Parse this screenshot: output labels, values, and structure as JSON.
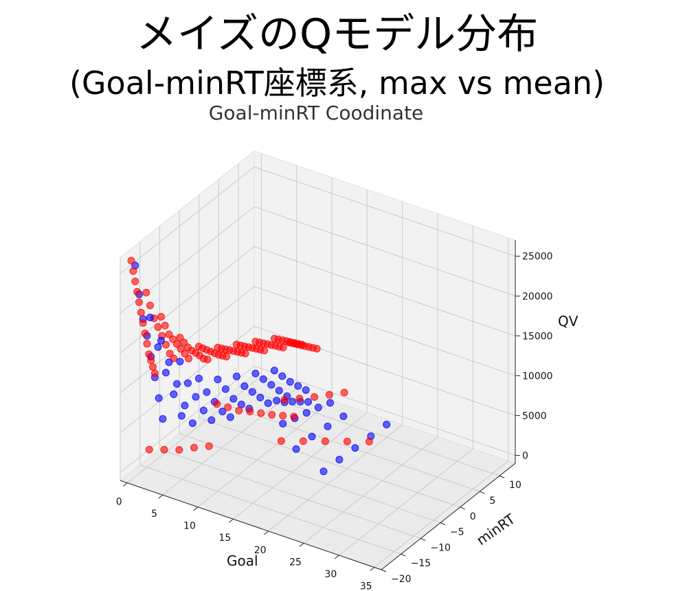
{
  "slide": {
    "title_line1": "メイズのQモデル分布",
    "title_line2": "(Goal-minRT座標系, max vs mean)"
  },
  "chart_data": {
    "type": "scatter",
    "title": "Goal-minRT Coodinate",
    "xlabel": "Goal",
    "ylabel": "minRT",
    "zlabel": "QV",
    "xlim": [
      -1,
      36
    ],
    "ylim": [
      -20,
      14
    ],
    "zlim": [
      -1000,
      27000
    ],
    "xticks": [
      "0",
      "5",
      "10",
      "15",
      "20",
      "25",
      "30",
      "35"
    ],
    "yticks": [
      "−20",
      "−15",
      "−10",
      "−5",
      "0",
      "5",
      "10"
    ],
    "zticks": [
      "0",
      "5000",
      "10000",
      "15000",
      "20000",
      "25000"
    ],
    "grid": true,
    "colors": {
      "max": "#ff0000",
      "mean": "#0000ff",
      "pane": "#f2f2f2",
      "grid": "#c8c8c8"
    },
    "series": [
      {
        "color": "#0000ff",
        "points": [
          [
            0,
            -18,
            25500
          ],
          [
            0,
            -17,
            21500
          ],
          [
            0,
            -16,
            18000
          ],
          [
            0,
            -15,
            15500
          ],
          [
            0,
            -14,
            12500
          ],
          [
            0,
            -13,
            9500
          ],
          [
            0,
            -12,
            6500
          ],
          [
            0,
            -11,
            3500
          ],
          [
            1,
            -16,
            18500
          ],
          [
            1,
            -14,
            14000
          ],
          [
            1,
            -12,
            10000
          ],
          [
            1,
            -10,
            6500
          ],
          [
            1,
            -8,
            3000
          ],
          [
            2,
            -15,
            15500
          ],
          [
            2,
            -13,
            12000
          ],
          [
            2,
            -11,
            8500
          ],
          [
            2,
            -9,
            5000
          ],
          [
            2,
            -7,
            2000
          ],
          [
            3,
            -12,
            12000
          ],
          [
            3,
            -10,
            8500
          ],
          [
            3,
            -8,
            6000
          ],
          [
            3,
            -6,
            3500
          ],
          [
            3,
            -4,
            1500
          ],
          [
            4,
            -9,
            9000
          ],
          [
            4,
            -7,
            6500
          ],
          [
            4,
            -5,
            4500
          ],
          [
            4,
            -3,
            2500
          ],
          [
            4,
            -1,
            1000
          ],
          [
            5,
            -6,
            8000
          ],
          [
            5,
            -4,
            6000
          ],
          [
            5,
            -2,
            4000
          ],
          [
            5,
            0,
            2500
          ],
          [
            5,
            2,
            1200
          ],
          [
            6,
            -3,
            7500
          ],
          [
            6,
            -1,
            5500
          ],
          [
            6,
            1,
            4000
          ],
          [
            6,
            3,
            2500
          ],
          [
            6,
            5,
            1000
          ],
          [
            7,
            0,
            7000
          ],
          [
            7,
            2,
            5500
          ],
          [
            7,
            4,
            4000
          ],
          [
            7,
            6,
            2500
          ],
          [
            7,
            8,
            1000
          ],
          [
            8,
            3,
            6500
          ],
          [
            8,
            5,
            5000
          ],
          [
            8,
            7,
            3500
          ],
          [
            8,
            9,
            2200
          ],
          [
            8,
            11,
            900
          ],
          [
            10,
            0,
            4500
          ],
          [
            10,
            2,
            3500
          ],
          [
            10,
            4,
            2800
          ],
          [
            10,
            6,
            2000
          ],
          [
            10,
            8,
            1200
          ],
          [
            12,
            -2,
            3000
          ],
          [
            12,
            1,
            2500
          ],
          [
            12,
            4,
            2000
          ],
          [
            12,
            7,
            1500
          ],
          [
            12,
            10,
            900
          ],
          [
            15,
            -4,
            1500
          ],
          [
            15,
            0,
            1500
          ],
          [
            15,
            4,
            1200
          ],
          [
            15,
            8,
            900
          ],
          [
            20,
            -6,
            1000
          ],
          [
            20,
            -2,
            900
          ],
          [
            20,
            2,
            800
          ],
          [
            20,
            6,
            700
          ],
          [
            20,
            10,
            600
          ]
        ]
      },
      {
        "color": "#ff0000",
        "points": [
          [
            0,
            -19,
            26500
          ],
          [
            0,
            -18.5,
            25000
          ],
          [
            0,
            -18,
            23500
          ],
          [
            0,
            -17.5,
            22000
          ],
          [
            0,
            -17,
            20500
          ],
          [
            0,
            -16.5,
            19000
          ],
          [
            0,
            -16,
            17500
          ],
          [
            0,
            -15.5,
            16000
          ],
          [
            0,
            -15,
            14500
          ],
          [
            0,
            -14.5,
            13000
          ],
          [
            0,
            -14,
            12000
          ],
          [
            0,
            -13.5,
            11000
          ],
          [
            0,
            -13,
            10000
          ],
          [
            1,
            -17,
            22000
          ],
          [
            1,
            -16,
            20000
          ],
          [
            1,
            -15,
            18000
          ],
          [
            1,
            -14,
            16500
          ],
          [
            1,
            -13,
            15000
          ],
          [
            1,
            -12,
            13500
          ],
          [
            1,
            -11,
            12000
          ],
          [
            1,
            -10,
            11000
          ],
          [
            2,
            -15,
            18500
          ],
          [
            2,
            -14,
            17000
          ],
          [
            2,
            -13,
            15500
          ],
          [
            2,
            -12,
            14500
          ],
          [
            2,
            -11,
            13500
          ],
          [
            2,
            -10,
            12500
          ],
          [
            2,
            -9,
            11500
          ],
          [
            2,
            -8,
            10500
          ],
          [
            3,
            -12,
            15000
          ],
          [
            3,
            -11,
            14000
          ],
          [
            3,
            -10,
            13000
          ],
          [
            3,
            -9,
            12200
          ],
          [
            3,
            -8,
            11500
          ],
          [
            3,
            -7,
            10800
          ],
          [
            3,
            -6,
            10000
          ],
          [
            3,
            -5,
            9500
          ],
          [
            4,
            -9,
            13000
          ],
          [
            4,
            -8,
            12400
          ],
          [
            4,
            -7,
            11800
          ],
          [
            4,
            -6,
            11200
          ],
          [
            4,
            -5,
            10600
          ],
          [
            4,
            -4,
            10000
          ],
          [
            4,
            -3,
            9500
          ],
          [
            4,
            -2,
            9000
          ],
          [
            5,
            -6,
            12000
          ],
          [
            5,
            -5,
            11500
          ],
          [
            5,
            -4,
            11000
          ],
          [
            5,
            -3,
            10500
          ],
          [
            5,
            -2,
            10000
          ],
          [
            5,
            -1,
            9500
          ],
          [
            5,
            0,
            9000
          ],
          [
            5,
            1,
            8500
          ],
          [
            6,
            -3,
            11500
          ],
          [
            6,
            -2,
            11000
          ],
          [
            6,
            -1,
            10500
          ],
          [
            6,
            0,
            10000
          ],
          [
            6,
            1,
            9500
          ],
          [
            6,
            2,
            9000
          ],
          [
            6,
            3,
            8500
          ],
          [
            6,
            4,
            8000
          ],
          [
            7,
            0,
            11000
          ],
          [
            7,
            1,
            10500
          ],
          [
            7,
            2,
            10000
          ],
          [
            7,
            3,
            9500
          ],
          [
            7,
            4,
            9000
          ],
          [
            7,
            5,
            8500
          ],
          [
            7,
            6,
            8000
          ],
          [
            7,
            7,
            7500
          ],
          [
            8,
            3,
            10500
          ],
          [
            8,
            4,
            10000
          ],
          [
            8,
            5,
            9500
          ],
          [
            8,
            6,
            9000
          ],
          [
            8,
            7,
            8500
          ],
          [
            8,
            8,
            8000
          ],
          [
            8,
            9,
            7500
          ],
          [
            8,
            10,
            7000
          ],
          [
            9,
            5,
            9500
          ],
          [
            9,
            6,
            9000
          ],
          [
            9,
            7,
            8500
          ],
          [
            9,
            8,
            8000
          ],
          [
            9,
            9,
            7500
          ],
          [
            9,
            10,
            7000
          ],
          [
            9,
            11,
            6500
          ],
          [
            9,
            12,
            6000
          ],
          [
            6,
            -8,
            6000
          ],
          [
            7,
            -7,
            5500
          ],
          [
            8,
            -6,
            5000
          ],
          [
            9,
            -5,
            4800
          ],
          [
            10,
            -4,
            4500
          ],
          [
            11,
            -3,
            4200
          ],
          [
            12,
            -2,
            4000
          ],
          [
            13,
            -1,
            3800
          ],
          [
            10,
            2,
            3800
          ],
          [
            11,
            4,
            3500
          ],
          [
            12,
            6,
            3200
          ],
          [
            13,
            8,
            3000
          ],
          [
            14,
            10,
            2800
          ],
          [
            14,
            -6,
            3000
          ],
          [
            16,
            -4,
            2800
          ],
          [
            18,
            -2,
            2600
          ],
          [
            20,
            0,
            2400
          ],
          [
            22,
            2,
            2200
          ],
          [
            2,
            -18,
            3000
          ],
          [
            3,
            -16,
            2500
          ],
          [
            4,
            -14,
            2000
          ],
          [
            5,
            -12,
            1800
          ],
          [
            6,
            -10,
            1500
          ]
        ]
      }
    ]
  }
}
